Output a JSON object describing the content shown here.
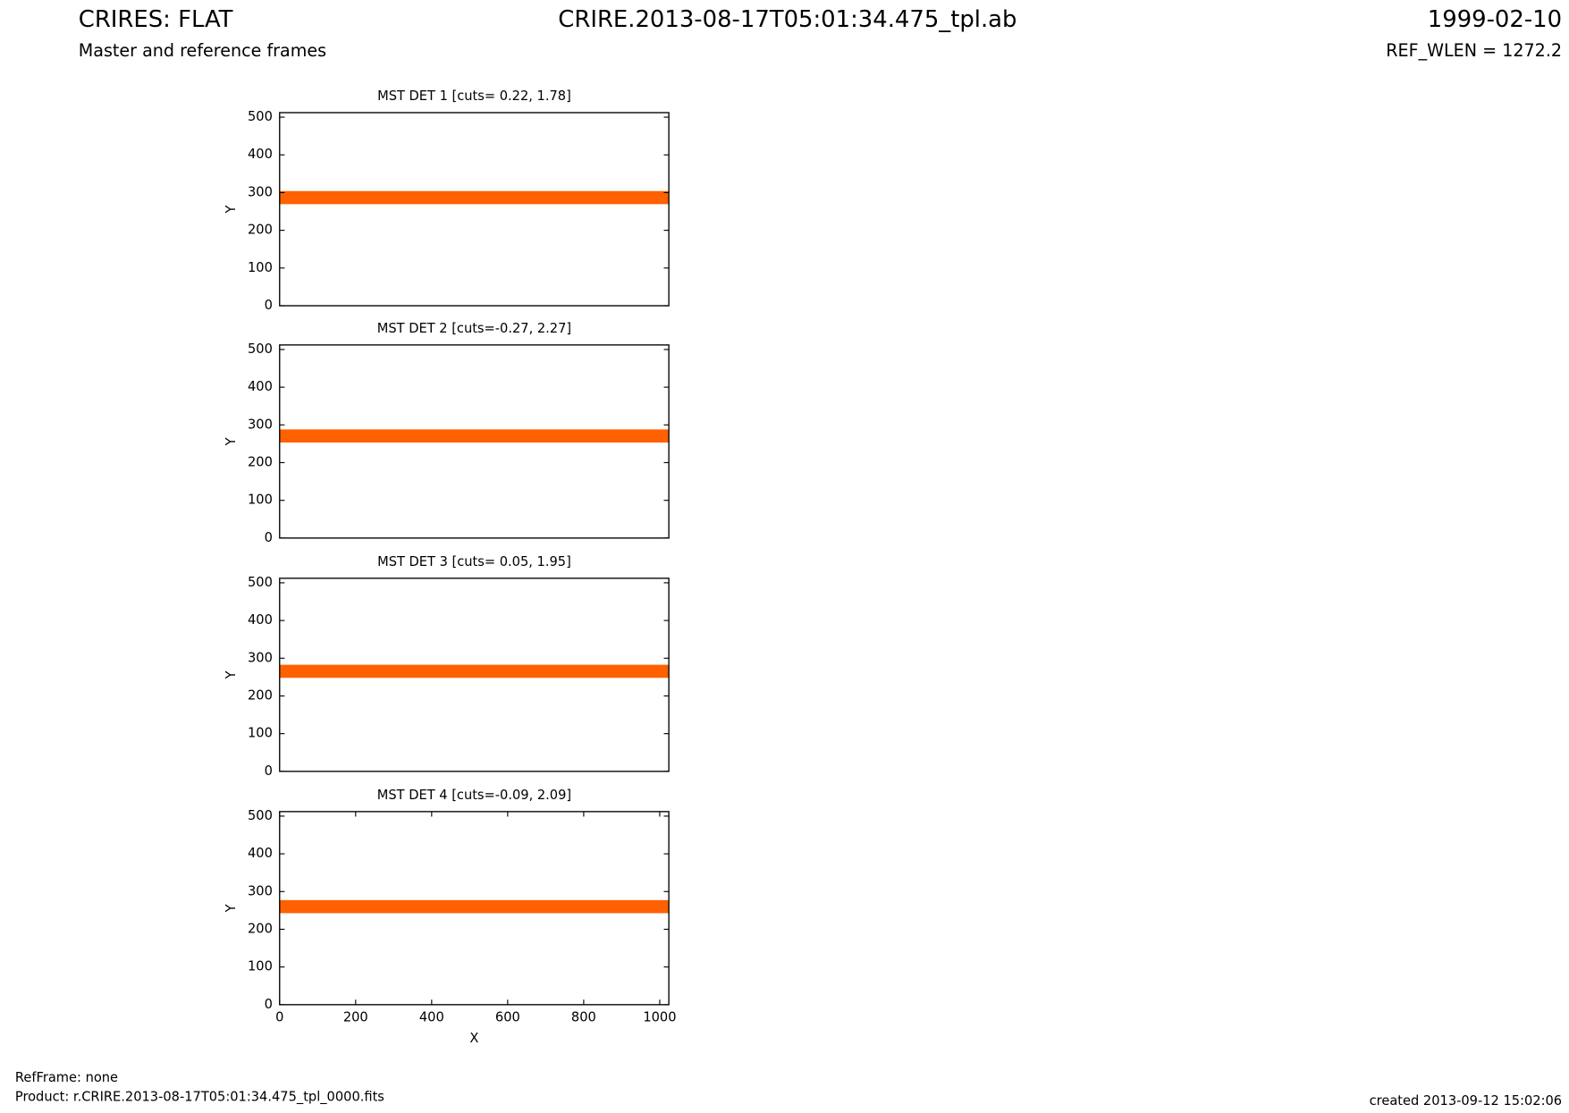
{
  "header": {
    "title": "CRIRES: FLAT",
    "subtitle": "Master and reference frames",
    "file": "CRIRE.2013-08-17T05:01:34.475_tpl.ab",
    "date": "1999-02-10",
    "ref_wlen": "REF_WLEN = 1272.2"
  },
  "chart_data": [
    {
      "type": "image",
      "title": "MST DET 1 [cuts= 0.22, 1.78]",
      "ylabel": "Y",
      "xlim": [
        0,
        1024
      ],
      "ylim": [
        0,
        512
      ],
      "yticks": [
        0,
        100,
        200,
        300,
        400,
        500
      ]
    },
    {
      "type": "image",
      "title": "MST DET 2 [cuts=-0.27, 2.27]",
      "ylabel": "Y",
      "xlim": [
        0,
        1024
      ],
      "ylim": [
        0,
        512
      ],
      "yticks": [
        0,
        100,
        200,
        300,
        400,
        500
      ]
    },
    {
      "type": "image",
      "title": "MST DET 3 [cuts= 0.05, 1.95]",
      "ylabel": "Y",
      "xlim": [
        0,
        1024
      ],
      "ylim": [
        0,
        512
      ],
      "yticks": [
        0,
        100,
        200,
        300,
        400,
        500
      ]
    },
    {
      "type": "image",
      "title": "MST DET 4 [cuts=-0.09, 2.09]",
      "ylabel": "Y",
      "xlabel": "X",
      "xlim": [
        0,
        1024
      ],
      "ylim": [
        0,
        512
      ],
      "yticks": [
        0,
        100,
        200,
        300,
        400,
        500
      ],
      "xticks": [
        0,
        200,
        400,
        600,
        800,
        1000
      ]
    }
  ],
  "footer": {
    "refframe": "RefFrame: none",
    "product": "Product: r.CRIRE.2013-08-17T05:01:34.475_tpl_0000.fits",
    "created": "created 2013-09-12 15:02:06"
  }
}
